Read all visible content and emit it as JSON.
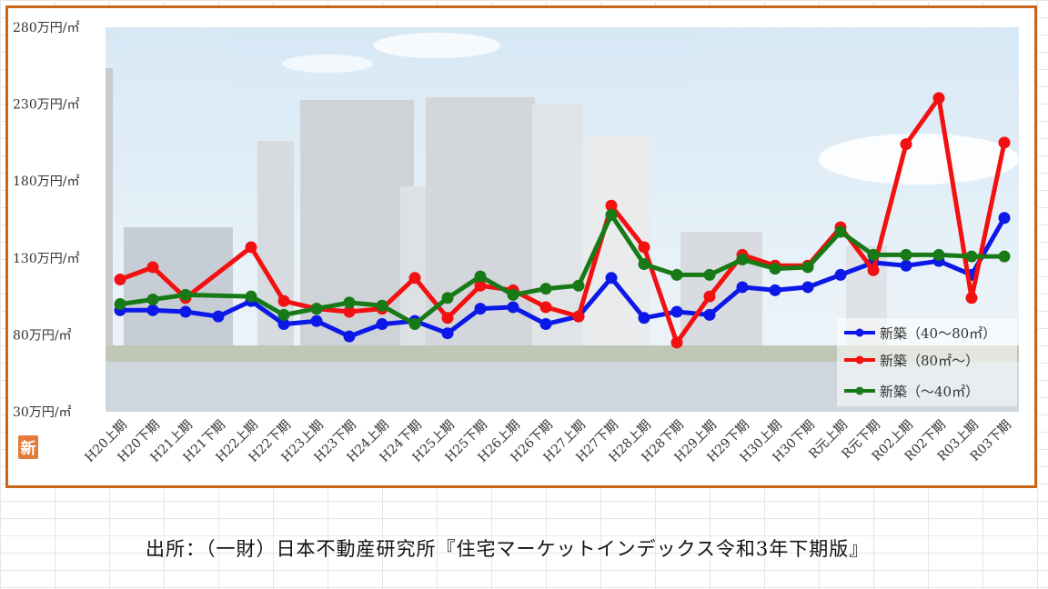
{
  "colors": {
    "frame": "#c8661c",
    "series1": "#0b18e8",
    "series2": "#f21010",
    "series3": "#177a17",
    "badge": "#e27b3a"
  },
  "badge_text": "新",
  "source_text": "出所：（一財）日本不動産研究所『住宅マーケットインデックス令和3年下期版』",
  "chart_data": {
    "type": "line",
    "ylim": [
      30,
      280
    ],
    "yticks": [
      30,
      80,
      130,
      180,
      230,
      280
    ],
    "ytick_labels": [
      "30万円/㎡",
      "80万円/㎡",
      "130万円/㎡",
      "180万円/㎡",
      "230万円/㎡",
      "280万円/㎡"
    ],
    "categories": [
      "H20上期",
      "H20下期",
      "H21上期",
      "H21下期",
      "H22上期",
      "H22下期",
      "H23上期",
      "H23下期",
      "H24上期",
      "H24下期",
      "H25上期",
      "H25下期",
      "H26上期",
      "H26下期",
      "H27上期",
      "H27下期",
      "H28上期",
      "H28下期",
      "H29上期",
      "H29下期",
      "H30上期",
      "H30下期",
      "R元上期",
      "R元下期",
      "R02上期",
      "R02下期",
      "R03上期",
      "R03下期"
    ],
    "series": [
      {
        "name": "新築（40～80㎡）",
        "color": "#0b18e8",
        "values": [
          96,
          96,
          95,
          92,
          102,
          87,
          89,
          79,
          87,
          89,
          81,
          97,
          98,
          87,
          92,
          117,
          91,
          95,
          93,
          111,
          109,
          111,
          119,
          127,
          125,
          128,
          119,
          156
        ]
      },
      {
        "name": "新築（80㎡～）",
        "color": "#f21010",
        "values": [
          116,
          124,
          104,
          null,
          137,
          102,
          97,
          95,
          97,
          117,
          91,
          112,
          109,
          98,
          92,
          164,
          137,
          75,
          105,
          132,
          125,
          125,
          150,
          122,
          204,
          234,
          104,
          205
        ]
      },
      {
        "name": "新築（～40㎡）",
        "color": "#177a17",
        "values": [
          100,
          103,
          106,
          null,
          105,
          93,
          97,
          101,
          99,
          87,
          104,
          118,
          106,
          110,
          112,
          158,
          126,
          119,
          119,
          129,
          123,
          124,
          147,
          132,
          132,
          132,
          131,
          131
        ]
      }
    ]
  }
}
